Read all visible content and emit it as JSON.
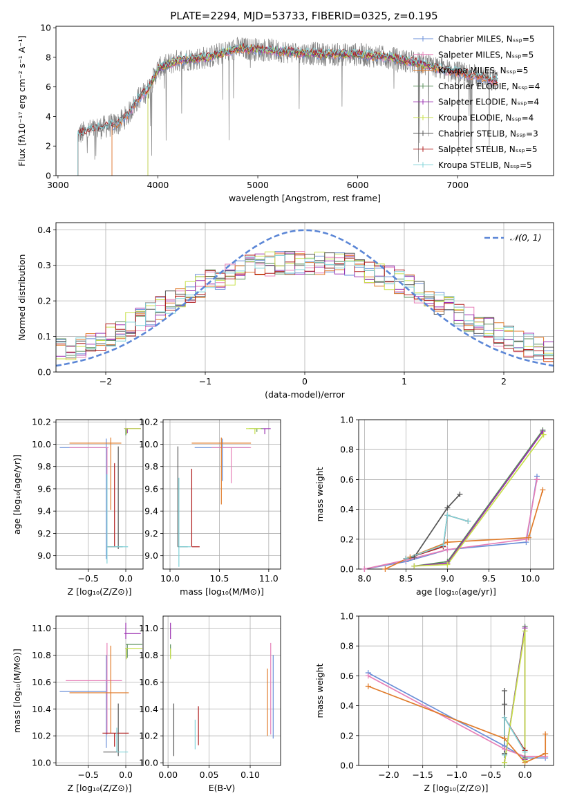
{
  "figure_title": "PLATE=2294, MJD=53733, FIBERID=0325, z=0.195",
  "colors": {
    "Chabrier MILES": "#6a8fd8",
    "Salpeter MILES": "#e67fb7",
    "Kroupa MILES": "#e07b2a",
    "Chabrier ELODIE": "#5a8f5a",
    "Salpeter ELODIE": "#9a2fb0",
    "Kroupa ELODIE": "#c7e04a",
    "Chabrier STELIB": "#555555",
    "Salpeter STELIB": "#b01f1f",
    "Kroupa STELIB": "#7fd3d8",
    "data": "#808080",
    "normal": "#5b86d6"
  },
  "chart_data": [
    {
      "id": "spectrum",
      "type": "line",
      "title": "PLATE=2294, MJD=53733, FIBERID=0325, z=0.195",
      "xlabel": "wavelength [Angstrom, rest frame]",
      "ylabel": "Flux [fλ10⁻¹⁷ erg cm⁻² s⁻¹ A⁻¹]",
      "xlim": [
        2980,
        7960
      ],
      "ylim": [
        0,
        10.1
      ],
      "xticks": [
        3000,
        4000,
        5000,
        6000,
        7000
      ],
      "yticks": [
        0,
        2,
        4,
        6,
        8,
        10
      ],
      "legend_position": "top-right",
      "legend": [
        "Chabrier MILES, Nₛₛₚ=5",
        "Salpeter MILES, Nₛₛₚ=5",
        "Kroupa MILES, Nₛₛₚ=5",
        "Chabrier ELODIE, Nₛₛₚ=4",
        "Salpeter ELODIE, Nₛₛₚ=4",
        "Kroupa ELODIE, Nₛₛₚ=4",
        "Chabrier STELIB, Nₛₛₚ=3",
        "Salpeter STELIB, Nₛₛₚ=5",
        "Kroupa STELIB, Nₛₛₚ=5"
      ],
      "continuum": [
        [
          3200,
          2.8
        ],
        [
          3400,
          3.2
        ],
        [
          3600,
          3.5
        ],
        [
          3700,
          4.1
        ],
        [
          3800,
          5.2
        ],
        [
          3900,
          5.8
        ],
        [
          4000,
          7.2
        ],
        [
          4200,
          7.8
        ],
        [
          4500,
          8.0
        ],
        [
          4800,
          8.6
        ],
        [
          5100,
          8.5
        ],
        [
          5400,
          8.3
        ],
        [
          5700,
          8.2
        ],
        [
          6000,
          8.2
        ],
        [
          6300,
          8.0
        ],
        [
          6600,
          7.6
        ],
        [
          6900,
          7.1
        ],
        [
          7200,
          6.7
        ],
        [
          7400,
          6.4
        ]
      ],
      "series_ranges": {
        "data": [
          3200,
          7400
        ],
        "Chabrier MILES": [
          3540,
          7400
        ],
        "Salpeter MILES": [
          3540,
          7400
        ],
        "Kroupa MILES": [
          3540,
          7400
        ],
        "Chabrier ELODIE": [
          3900,
          6800
        ],
        "Salpeter ELODIE": [
          3900,
          6800
        ],
        "Kroupa ELODIE": [
          3900,
          6800
        ],
        "Chabrier STELIB": [
          3200,
          7400
        ],
        "Salpeter STELIB": [
          3200,
          7400
        ],
        "Kroupa STELIB": [
          3200,
          7400
        ]
      }
    },
    {
      "id": "residuals",
      "type": "histogram",
      "xlabel": "(data-model)/error",
      "ylabel": "Normed distribution",
      "xlim": [
        -2.5,
        2.5
      ],
      "ylim": [
        0,
        0.42
      ],
      "xticks": [
        -2,
        -1,
        0,
        1,
        2
      ],
      "yticks": [
        0.0,
        0.1,
        0.2,
        0.3,
        0.4
      ],
      "legend_position": "top-right",
      "legend": [
        "𝒩(0, 1)"
      ],
      "normal_curve": {
        "mu": 0,
        "sigma": 1
      },
      "bin_width": 0.1,
      "base_profile": [
        [
          -2.5,
          0.06
        ],
        [
          -2.2,
          0.07
        ],
        [
          -2.0,
          0.1
        ],
        [
          -1.5,
          0.17
        ],
        [
          -1.0,
          0.25
        ],
        [
          -0.5,
          0.3
        ],
        [
          0.0,
          0.31
        ],
        [
          0.5,
          0.3
        ],
        [
          1.0,
          0.25
        ],
        [
          1.5,
          0.17
        ],
        [
          2.0,
          0.1
        ],
        [
          2.5,
          0.05
        ]
      ]
    },
    {
      "id": "age_vs_Z",
      "type": "errorbar",
      "xlabel": "Z [log₁₀(Z/Z⊙)]",
      "ylabel": "age  [log₁₀(age/yr)]",
      "xlim": [
        -0.93,
        0.23
      ],
      "ylim": [
        8.88,
        10.22
      ],
      "xticks": [
        -0.5,
        0.0
      ],
      "yticks": [
        9.0,
        9.2,
        9.4,
        9.6,
        9.8,
        10.0,
        10.2
      ],
      "points": [
        {
          "model": "Chabrier MILES",
          "x": -0.26,
          "y": 9.97,
          "xerr": [
            0.62,
            0.0
          ],
          "yerr": [
            1.0,
            0.08
          ]
        },
        {
          "model": "Salpeter MILES",
          "x": -0.25,
          "y": 9.97,
          "xerr": [
            0.5,
            0.02
          ],
          "yerr": [
            0.9,
            0.0
          ]
        },
        {
          "model": "Kroupa MILES",
          "x": -0.2,
          "y": 10.01,
          "xerr": [
            0.55,
            0.14
          ],
          "yerr": [
            0.6,
            0.05
          ]
        },
        {
          "model": "Chabrier ELODIE",
          "x": 0.0,
          "y": 10.14,
          "xerr": [
            0.02,
            0.2
          ],
          "yerr": [
            0.06,
            0.0
          ]
        },
        {
          "model": "Salpeter ELODIE",
          "x": 0.02,
          "y": 10.14,
          "xerr": [
            0.04,
            0.18
          ],
          "yerr": [
            0.04,
            0.0
          ]
        },
        {
          "model": "Kroupa ELODIE",
          "x": 0.01,
          "y": 10.14,
          "xerr": [
            0.03,
            0.19
          ],
          "yerr": [
            0.05,
            0.0
          ]
        },
        {
          "model": "Chabrier STELIB",
          "x": -0.1,
          "y": 9.08,
          "xerr": [
            0.15,
            0.06
          ],
          "yerr": [
            0.02,
            0.9
          ]
        },
        {
          "model": "Salpeter STELIB",
          "x": -0.15,
          "y": 9.08,
          "xerr": [
            0.1,
            0.0
          ],
          "yerr": [
            0.0,
            0.75
          ]
        },
        {
          "model": "Kroupa STELIB",
          "x": -0.25,
          "y": 9.08,
          "xerr": [
            0.0,
            0.28
          ],
          "yerr": [
            0.15,
            0.65
          ]
        }
      ]
    },
    {
      "id": "age_vs_mass",
      "type": "errorbar",
      "xlabel": "mass [log₁₀(M/M⊙)]",
      "ylabel": "",
      "xlim": [
        9.93,
        11.12
      ],
      "ylim": [
        8.88,
        10.22
      ],
      "xticks": [
        10.0,
        10.5,
        11.0
      ],
      "yticks": [
        9.0,
        9.2,
        9.4,
        9.6,
        9.8,
        10.0,
        10.2
      ],
      "points": [
        {
          "model": "Chabrier MILES",
          "x": 10.53,
          "y": 9.97,
          "xerr": [
            0.28,
            0.28
          ],
          "yerr": [
            0.3,
            0.08
          ]
        },
        {
          "model": "Salpeter MILES",
          "x": 10.62,
          "y": 9.97,
          "xerr": [
            0.2,
            0.2
          ],
          "yerr": [
            0.32,
            0.0
          ]
        },
        {
          "model": "Kroupa MILES",
          "x": 10.52,
          "y": 10.01,
          "xerr": [
            0.3,
            0.3
          ],
          "yerr": [
            0.55,
            0.05
          ]
        },
        {
          "model": "Chabrier ELODIE",
          "x": 10.88,
          "y": 10.14,
          "xerr": [
            0.08,
            0.06
          ],
          "yerr": [
            0.03,
            0.0
          ]
        },
        {
          "model": "Salpeter ELODIE",
          "x": 10.96,
          "y": 10.14,
          "xerr": [
            0.02,
            0.06
          ],
          "yerr": [
            0.05,
            0.0
          ]
        },
        {
          "model": "Kroupa ELODIE",
          "x": 10.86,
          "y": 10.14,
          "xerr": [
            0.09,
            0.06
          ],
          "yerr": [
            0.05,
            0.0
          ]
        },
        {
          "model": "Chabrier STELIB",
          "x": 10.08,
          "y": 9.08,
          "xerr": [
            0.0,
            0.1
          ],
          "yerr": [
            0.0,
            0.9
          ]
        },
        {
          "model": "Salpeter STELIB",
          "x": 10.22,
          "y": 9.08,
          "xerr": [
            0.0,
            0.08
          ],
          "yerr": [
            0.0,
            0.7
          ]
        },
        {
          "model": "Kroupa STELIB",
          "x": 10.09,
          "y": 9.08,
          "xerr": [
            0.0,
            0.12
          ],
          "yerr": [
            0.18,
            0.62
          ]
        }
      ]
    },
    {
      "id": "massweight_vs_age",
      "type": "line",
      "xlabel": "age  [log₁₀(age/yr)]",
      "ylabel": "mass weight",
      "xlim": [
        7.93,
        10.28
      ],
      "ylim": [
        0,
        1.0
      ],
      "xticks": [
        8.0,
        8.5,
        9.0,
        9.5,
        10.0
      ],
      "yticks": [
        0.0,
        0.2,
        0.4,
        0.6,
        0.8,
        1.0
      ],
      "series": [
        {
          "model": "Chabrier MILES",
          "x": [
            8.0,
            8.5,
            9.0,
            9.95,
            10.08
          ],
          "y": [
            0.0,
            0.05,
            0.13,
            0.18,
            0.62
          ]
        },
        {
          "model": "Salpeter MILES",
          "x": [
            8.0,
            8.5,
            9.0,
            9.95,
            10.08
          ],
          "y": [
            0.0,
            0.06,
            0.13,
            0.2,
            0.6
          ]
        },
        {
          "model": "Kroupa MILES",
          "x": [
            8.25,
            8.55,
            9.0,
            9.98,
            10.15
          ],
          "y": [
            0.0,
            0.08,
            0.18,
            0.21,
            0.53
          ]
        },
        {
          "model": "Chabrier ELODIE",
          "x": [
            8.6,
            9.0,
            10.15
          ],
          "y": [
            0.02,
            0.05,
            0.93
          ]
        },
        {
          "model": "Salpeter ELODIE",
          "x": [
            8.6,
            9.0,
            10.15
          ],
          "y": [
            0.02,
            0.04,
            0.92
          ]
        },
        {
          "model": "Kroupa ELODIE",
          "x": [
            8.6,
            9.0,
            10.16
          ],
          "y": [
            0.02,
            0.03,
            0.9
          ]
        },
        {
          "model": "Chabrier STELIB",
          "x": [
            8.5,
            8.6,
            9.0,
            9.15
          ],
          "y": [
            0.07,
            0.08,
            0.41,
            0.5
          ]
        },
        {
          "model": "Salpeter STELIB",
          "x": [
            8.5,
            8.95,
            9.0,
            9.25
          ],
          "y": [
            0.07,
            0.15,
            0.36,
            0.32
          ]
        },
        {
          "model": "Kroupa STELIB",
          "x": [
            8.5,
            8.95,
            9.0,
            9.25
          ],
          "y": [
            0.07,
            0.16,
            0.36,
            0.32
          ]
        }
      ]
    },
    {
      "id": "mass_vs_Z",
      "type": "errorbar",
      "xlabel": "Z [log₁₀(Z/Z⊙)]",
      "ylabel": "mass [log₁₀(M/M⊙)]",
      "xlim": [
        -0.93,
        0.23
      ],
      "ylim": [
        9.98,
        11.09
      ],
      "xticks": [
        -0.5,
        0.0
      ],
      "yticks": [
        10.0,
        10.2,
        10.4,
        10.6,
        10.8,
        11.0
      ],
      "points": [
        {
          "model": "Chabrier MILES",
          "x": -0.26,
          "y": 10.53,
          "xerr": [
            0.62,
            0.0
          ],
          "yerr": [
            0.42,
            0.27
          ]
        },
        {
          "model": "Salpeter MILES",
          "x": -0.25,
          "y": 10.61,
          "xerr": [
            0.55,
            0.2
          ],
          "yerr": [
            0.4,
            0.28
          ]
        },
        {
          "model": "Kroupa MILES",
          "x": -0.2,
          "y": 10.52,
          "xerr": [
            0.55,
            0.24
          ],
          "yerr": [
            0.3,
            0.35
          ]
        },
        {
          "model": "Chabrier ELODIE",
          "x": 0.02,
          "y": 10.88,
          "xerr": [
            0.02,
            0.2
          ],
          "yerr": [
            0.1,
            0.0
          ]
        },
        {
          "model": "Salpeter ELODIE",
          "x": 0.0,
          "y": 10.96,
          "xerr": [
            0.02,
            0.2
          ],
          "yerr": [
            0.04,
            0.08
          ]
        },
        {
          "model": "Kroupa ELODIE",
          "x": 0.01,
          "y": 10.85,
          "xerr": [
            0.02,
            0.21
          ],
          "yerr": [
            0.08,
            0.0
          ]
        },
        {
          "model": "Chabrier STELIB",
          "x": -0.1,
          "y": 10.08,
          "xerr": [
            0.2,
            0.0
          ],
          "yerr": [
            0.03,
            0.36
          ]
        },
        {
          "model": "Salpeter STELIB",
          "x": -0.15,
          "y": 10.22,
          "xerr": [
            0.16,
            0.19
          ],
          "yerr": [
            0.1,
            0.0
          ]
        },
        {
          "model": "Kroupa STELIB",
          "x": -0.12,
          "y": 10.08,
          "xerr": [
            0.0,
            0.15
          ],
          "yerr": [
            0.0,
            0.18
          ]
        }
      ]
    },
    {
      "id": "mass_vs_EBV",
      "type": "errorbar",
      "xlabel": "E(B-V)",
      "ylabel": "",
      "xlim": [
        -0.006,
        0.137
      ],
      "ylim": [
        9.98,
        11.09
      ],
      "xticks": [
        0.0,
        0.05,
        0.1
      ],
      "yticks": [
        10.0,
        10.2,
        10.4,
        10.6,
        10.8,
        11.0
      ],
      "points": [
        {
          "model": "Chabrier MILES",
          "x": 0.128,
          "y": 10.53,
          "xerr": [
            0,
            0
          ],
          "yerr": [
            0.35,
            0.27
          ]
        },
        {
          "model": "Salpeter MILES",
          "x": 0.125,
          "y": 10.61,
          "xerr": [
            0,
            0
          ],
          "yerr": [
            0.4,
            0.28
          ]
        },
        {
          "model": "Kroupa MILES",
          "x": 0.121,
          "y": 10.52,
          "xerr": [
            0,
            0
          ],
          "yerr": [
            0.32,
            0.18
          ]
        },
        {
          "model": "Chabrier ELODIE",
          "x": 0.003,
          "y": 10.88,
          "xerr": [
            0,
            0
          ],
          "yerr": [
            0.1,
            0.0
          ]
        },
        {
          "model": "Salpeter ELODIE",
          "x": 0.003,
          "y": 10.96,
          "xerr": [
            0,
            0
          ],
          "yerr": [
            0.04,
            0.08
          ]
        },
        {
          "model": "Kroupa ELODIE",
          "x": 0.003,
          "y": 10.85,
          "xerr": [
            0,
            0
          ],
          "yerr": [
            0.08,
            0.0
          ]
        },
        {
          "model": "Chabrier STELIB",
          "x": 0.007,
          "y": 10.25,
          "xerr": [
            0,
            0
          ],
          "yerr": [
            0.2,
            0.19
          ]
        },
        {
          "model": "Salpeter STELIB",
          "x": 0.037,
          "y": 10.28,
          "xerr": [
            0,
            0
          ],
          "yerr": [
            0.15,
            0.14
          ]
        },
        {
          "model": "Kroupa STELIB",
          "x": 0.033,
          "y": 10.18,
          "xerr": [
            0,
            0
          ],
          "yerr": [
            0.08,
            0.14
          ]
        }
      ]
    },
    {
      "id": "massweight_vs_Z",
      "type": "line",
      "xlabel": "Z [log₁₀(Z/Z⊙)]",
      "ylabel": "mass weight",
      "xlim": [
        -2.44,
        0.42
      ],
      "ylim": [
        0,
        1.0
      ],
      "xticks": [
        -2.0,
        -1.5,
        -1.0,
        -0.5,
        0.0
      ],
      "yticks": [
        0.0,
        0.2,
        0.4,
        0.6,
        0.8,
        1.0
      ],
      "series": [
        {
          "model": "Chabrier MILES",
          "x": [
            -2.3,
            -0.3,
            0.0,
            0.3
          ],
          "y": [
            0.62,
            0.13,
            0.05,
            0.05
          ]
        },
        {
          "model": "Salpeter MILES",
          "x": [
            -2.3,
            -0.3,
            0.0,
            0.3
          ],
          "y": [
            0.6,
            0.11,
            0.06,
            0.06
          ]
        },
        {
          "model": "Kroupa MILES",
          "x": [
            -2.3,
            -0.3,
            0.0,
            0.3,
            0.3
          ],
          "y": [
            0.53,
            0.18,
            0.02,
            0.08,
            0.21
          ]
        },
        {
          "model": "Chabrier ELODIE",
          "x": [
            -0.3,
            -0.3,
            0.0,
            0.0
          ],
          "y": [
            0.0,
            0.02,
            0.93,
            0.05
          ]
        },
        {
          "model": "Salpeter ELODIE",
          "x": [
            -0.3,
            0.0,
            0.0
          ],
          "y": [
            0.02,
            0.92,
            0.04
          ]
        },
        {
          "model": "Kroupa ELODIE",
          "x": [
            -0.3,
            0.0,
            0.0
          ],
          "y": [
            0.02,
            0.9,
            0.03
          ]
        },
        {
          "model": "Chabrier STELIB",
          "x": [
            -0.3,
            -0.3,
            -0.3,
            -0.3
          ],
          "y": [
            0.08,
            0.5,
            0.41,
            0.07
          ]
        },
        {
          "model": "Salpeter STELIB",
          "x": [
            -0.3,
            -0.3,
            0.0
          ],
          "y": [
            0.07,
            0.32,
            0.1
          ]
        },
        {
          "model": "Kroupa STELIB",
          "x": [
            -0.3,
            -0.3,
            0.0
          ],
          "y": [
            0.07,
            0.32,
            0.09
          ]
        }
      ]
    }
  ]
}
